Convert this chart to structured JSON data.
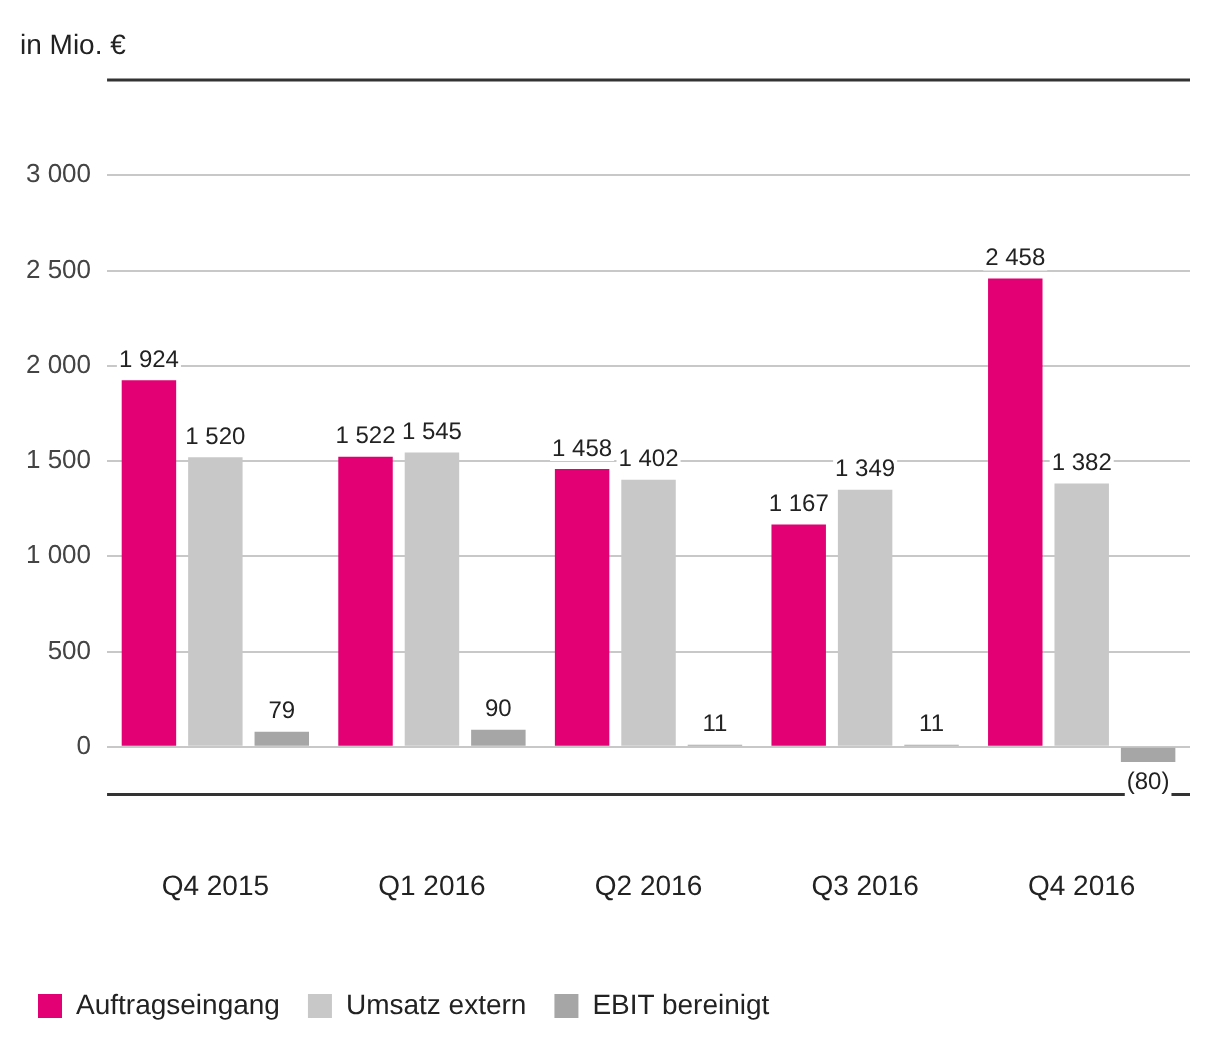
{
  "chart_data": {
    "type": "bar",
    "ylabel": "in Mio. €",
    "categories": [
      "Q4 2015",
      "Q1 2016",
      "Q2 2016",
      "Q3 2016",
      "Q4 2016"
    ],
    "series": [
      {
        "name": "Auftragseingang",
        "color": "#e20074",
        "values": [
          1924,
          1522,
          1458,
          1167,
          2458
        ],
        "value_labels": [
          "1 924",
          "1 522",
          "1 458",
          "1 167",
          "2 458"
        ]
      },
      {
        "name": "Umsatz extern",
        "color": "#c8c8c8",
        "values": [
          1520,
          1545,
          1402,
          1349,
          1382
        ],
        "value_labels": [
          "1 520",
          "1 545",
          "1 402",
          "1 349",
          "1 382"
        ]
      },
      {
        "name": "EBIT bereinigt",
        "color": "#a6a6a6",
        "values": [
          79,
          90,
          11,
          11,
          -80
        ],
        "value_labels": [
          "79",
          "90",
          "11",
          "11",
          "(80)"
        ]
      }
    ],
    "ylim": [
      -250,
      3500
    ],
    "yticks": [
      0,
      500,
      {
        "value": 1000,
        "label": "1 000"
      },
      {
        "value": 1500,
        "label": "1 500"
      },
      {
        "value": 2000,
        "label": "2 000"
      },
      {
        "value": 2500,
        "label": "2 500"
      },
      {
        "value": 3000,
        "label": "3 000"
      }
    ],
    "grid": "y",
    "legend": "bottom left"
  }
}
